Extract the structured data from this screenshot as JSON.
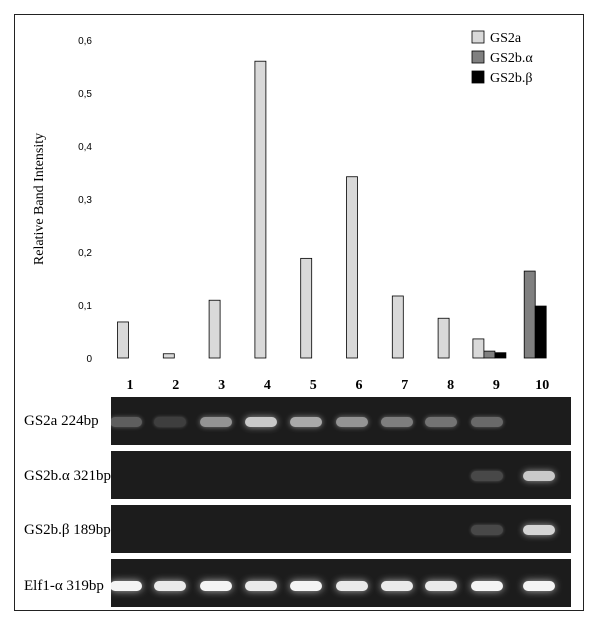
{
  "chart_data": {
    "type": "bar",
    "ylabel": "Relative Band Intensity",
    "xlabel": "",
    "ylim": [
      0,
      0.6
    ],
    "yticks": [
      "0",
      "0,1",
      "0,2",
      "0,3",
      "0,4",
      "0,5",
      "0,6"
    ],
    "grid": false,
    "legend_position": "top-right",
    "categories": [
      "1",
      "2",
      "3",
      "4",
      "5",
      "6",
      "7",
      "8",
      "9",
      "10"
    ],
    "series": [
      {
        "name": "GS2a",
        "color": "#d9d9d9",
        "values": [
          0.068,
          0.008,
          0.109,
          0.56,
          0.188,
          0.342,
          0.117,
          0.075,
          0.036,
          0
        ]
      },
      {
        "name": "GS2b.α",
        "color": "#808080",
        "values": [
          0,
          0,
          0,
          0,
          0,
          0,
          0,
          0,
          0.013,
          0.164
        ]
      },
      {
        "name": "GS2b.β",
        "color": "#000000",
        "values": [
          0,
          0,
          0,
          0,
          0,
          0,
          0,
          0,
          0.01,
          0.098
        ]
      }
    ]
  },
  "gel": {
    "lanes": [
      "1",
      "2",
      "3",
      "4",
      "5",
      "6",
      "7",
      "8",
      "9",
      "10"
    ],
    "rows": [
      {
        "label": "GS2a 224bp",
        "intensities": [
          0.25,
          0.1,
          0.5,
          0.75,
          0.6,
          0.5,
          0.4,
          0.35,
          0.3,
          0.0
        ]
      },
      {
        "label": "GS2b.α 321bp",
        "intensities": [
          0,
          0,
          0,
          0,
          0,
          0,
          0,
          0,
          0.15,
          0.75
        ]
      },
      {
        "label": "GS2b.β 189bp",
        "intensities": [
          0,
          0,
          0,
          0,
          0,
          0,
          0,
          0,
          0.15,
          0.8
        ]
      },
      {
        "label": "Elf1-α 319bp",
        "intensities": [
          0.95,
          0.9,
          0.95,
          0.9,
          0.95,
          0.9,
          0.9,
          0.9,
          0.95,
          0.95
        ]
      }
    ]
  }
}
